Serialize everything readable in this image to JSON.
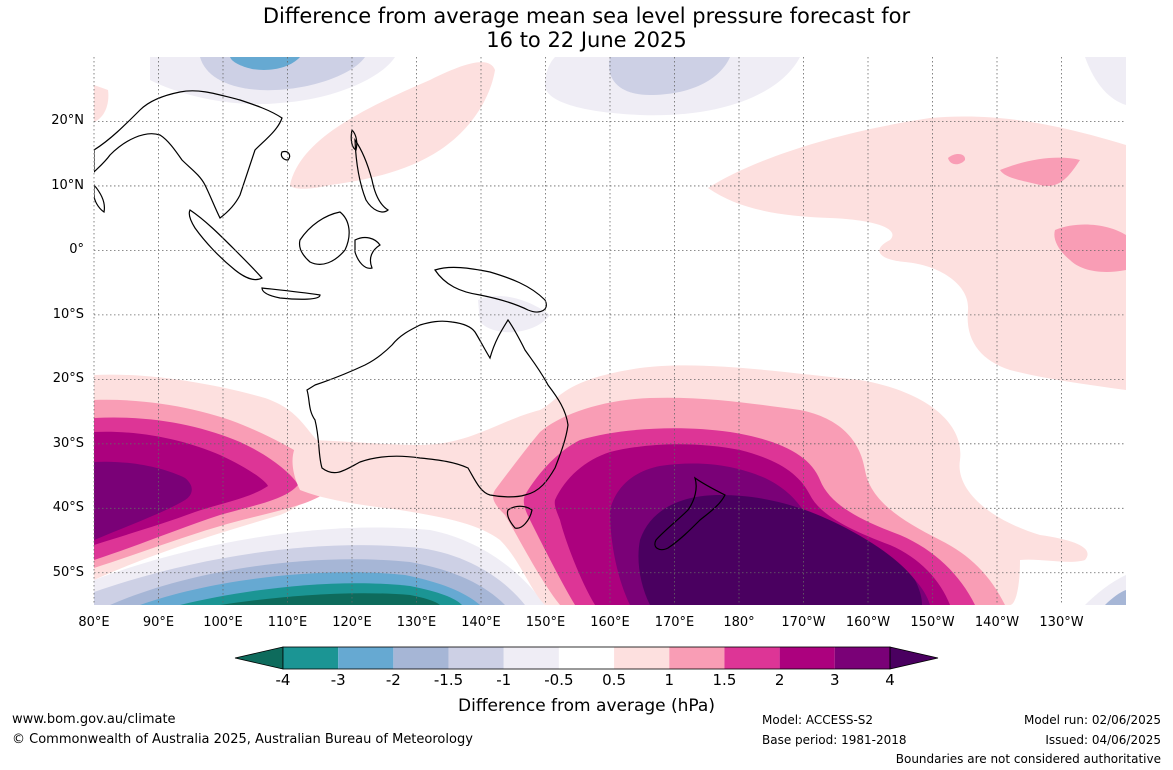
{
  "title": {
    "line1": "Difference from average mean sea level pressure forecast for",
    "line2": "16 to 22 June 2025"
  },
  "map": {
    "lat_labels": [
      "20°N",
      "10°N",
      "0°",
      "10°S",
      "20°S",
      "30°S",
      "40°S",
      "50°S"
    ],
    "lon_labels": [
      "80°E",
      "90°E",
      "100°E",
      "110°E",
      "120°E",
      "130°E",
      "140°E",
      "150°E",
      "160°E",
      "170°E",
      "180°",
      "170°W",
      "160°W",
      "150°W",
      "140°W",
      "130°W"
    ],
    "extent": {
      "lon": [
        80,
        240
      ],
      "lat": [
        -55,
        30
      ]
    },
    "gridlines": "dotted"
  },
  "colorbar": {
    "title": "Difference from average (hPa)",
    "labels": [
      "-4",
      "-3",
      "-2",
      "-1.5",
      "-1",
      "-0.5",
      "0.5",
      "1",
      "1.5",
      "2",
      "3",
      "4"
    ],
    "colors": [
      "#0e6b5c",
      "#1b9594",
      "#66a9d2",
      "#a6b6d6",
      "#cdd0e5",
      "#efedf5",
      "#ffffff",
      "#fde0df",
      "#f99db5",
      "#dd3596",
      "#ac017e",
      "#7a0177",
      "#4a0060"
    ]
  },
  "footer": {
    "url": "www.bom.gov.au/climate",
    "copyright": "© Commonwealth of Australia 2025, Australian Bureau of Meteorology",
    "model": "Model: ACCESS-S2",
    "base_period": "Base period: 1981-2018",
    "model_run": "Model run: 02/06/2025",
    "issued": "Issued: 04/06/2025",
    "disclaimer": "Boundaries are not considered authoritative"
  }
}
